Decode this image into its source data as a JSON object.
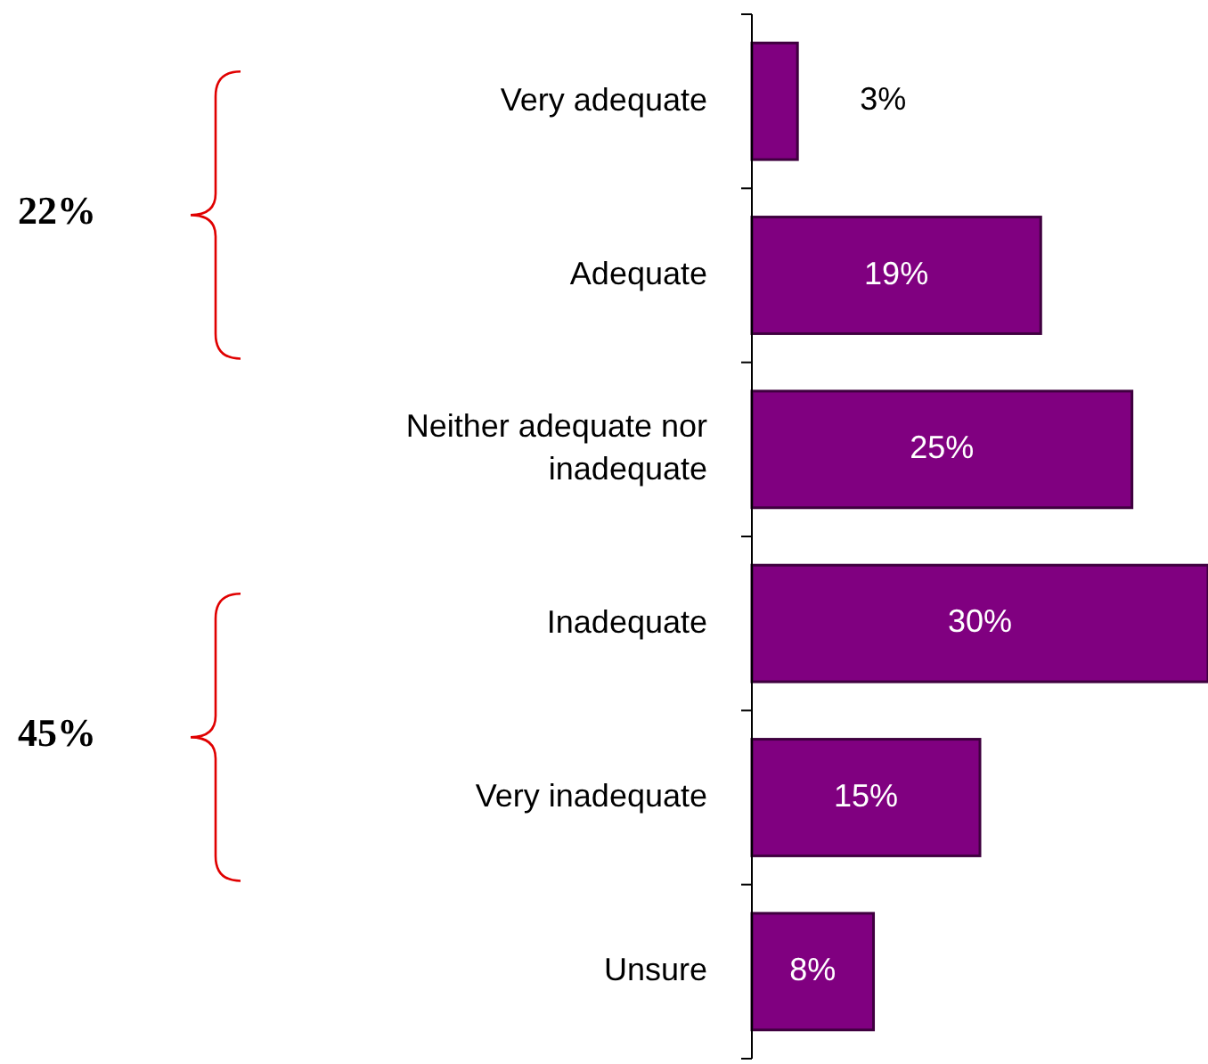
{
  "chart_data": {
    "type": "bar",
    "orientation": "horizontal",
    "categories": [
      "Very adequate",
      "Adequate",
      "Neither adequate nor inadequate",
      "Inadequate",
      "Very inadequate",
      "Unsure"
    ],
    "values": [
      3,
      19,
      25,
      30,
      15,
      8
    ],
    "value_labels": [
      "3%",
      "19%",
      "25%",
      "30%",
      "15%",
      "8%"
    ],
    "color": "#800080",
    "annotations": [
      "22%",
      "45%"
    ]
  }
}
